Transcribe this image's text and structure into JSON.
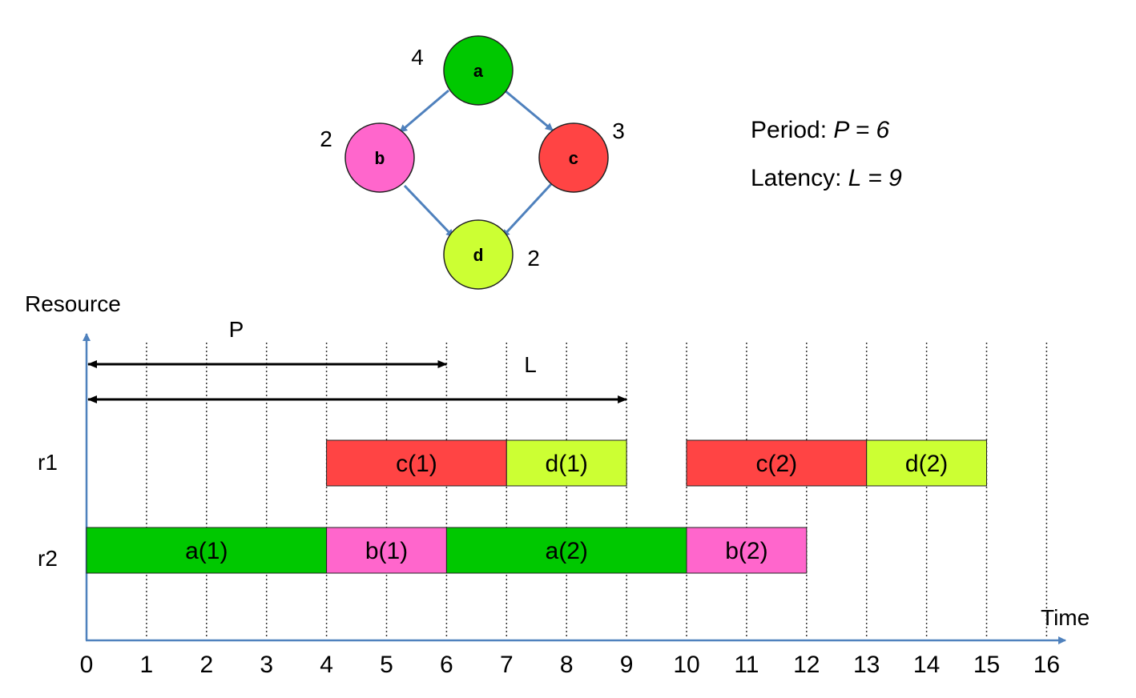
{
  "graph": {
    "nodes": [
      {
        "id": "a",
        "label": "a",
        "weight": "4",
        "color": "#00c800"
      },
      {
        "id": "b",
        "label": "b",
        "weight": "2",
        "color": "#ff66cc"
      },
      {
        "id": "c",
        "label": "c",
        "weight": "3",
        "color": "#ff4444"
      },
      {
        "id": "d",
        "label": "d",
        "weight": "2",
        "color": "#ccff33"
      }
    ],
    "edges": [
      [
        "a",
        "b"
      ],
      [
        "a",
        "c"
      ],
      [
        "b",
        "d"
      ],
      [
        "c",
        "d"
      ]
    ],
    "edge_color": "#4f81bd"
  },
  "info": {
    "period_label": "Period: ",
    "period_expr": "P = 6",
    "latency_label": "Latency: ",
    "latency_expr": "L = 9"
  },
  "chart": {
    "y_axis_label": "Resource",
    "x_axis_label": "Time",
    "period_marker": {
      "label": "P",
      "from": 0,
      "to": 6
    },
    "latency_marker": {
      "label": "L",
      "from": 0,
      "to": 9
    },
    "resources": [
      "r1",
      "r2"
    ],
    "ticks": [
      "0",
      "1",
      "2",
      "3",
      "4",
      "5",
      "6",
      "7",
      "8",
      "9",
      "10",
      "11",
      "12",
      "13",
      "14",
      "15",
      "16"
    ],
    "tasks": [
      {
        "resource": "r1",
        "label": "c(1)",
        "start": 4,
        "end": 7,
        "color": "#ff4444"
      },
      {
        "resource": "r1",
        "label": "d(1)",
        "start": 7,
        "end": 9,
        "color": "#ccff33"
      },
      {
        "resource": "r1",
        "label": "c(2)",
        "start": 10,
        "end": 13,
        "color": "#ff4444"
      },
      {
        "resource": "r1",
        "label": "d(2)",
        "start": 13,
        "end": 15,
        "color": "#ccff33"
      },
      {
        "resource": "r2",
        "label": "a(1)",
        "start": 0,
        "end": 4,
        "color": "#00c800"
      },
      {
        "resource": "r2",
        "label": "b(1)",
        "start": 4,
        "end": 6,
        "color": "#ff66cc"
      },
      {
        "resource": "r2",
        "label": "a(2)",
        "start": 6,
        "end": 10,
        "color": "#00c800"
      },
      {
        "resource": "r2",
        "label": "b(2)",
        "start": 10,
        "end": 12,
        "color": "#ff66cc"
      }
    ]
  }
}
